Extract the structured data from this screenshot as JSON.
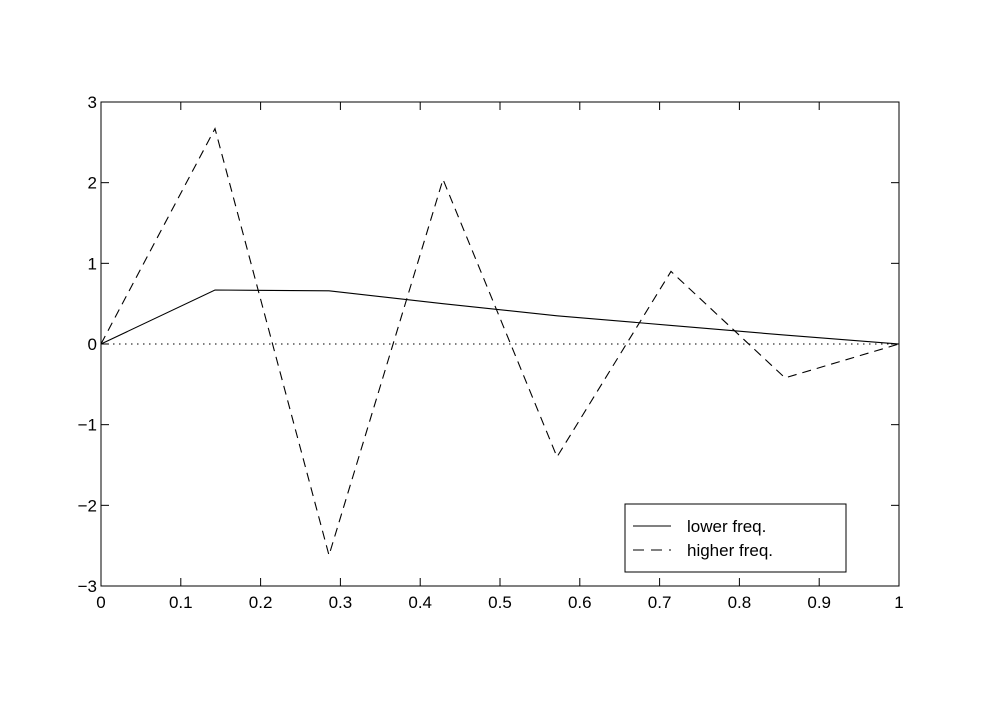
{
  "chart_data": {
    "type": "line",
    "title": "",
    "xlabel": "",
    "ylabel": "",
    "xlim": [
      0,
      1
    ],
    "ylim": [
      -3,
      3
    ],
    "x_ticks": [
      0,
      0.1,
      0.2,
      0.3,
      0.4,
      0.5,
      0.6,
      0.7,
      0.8,
      0.9,
      1
    ],
    "x_tick_labels": [
      "0",
      "0.1",
      "0.2",
      "0.3",
      "0.4",
      "0.5",
      "0.6",
      "0.7",
      "0.8",
      "0.9",
      "1"
    ],
    "y_ticks": [
      -3,
      -2,
      -1,
      0,
      1,
      2,
      3
    ],
    "y_tick_labels": [
      "−3",
      "−2",
      "−1",
      "0",
      "1",
      "2",
      "3"
    ],
    "grid": false,
    "legend_position": "lower-right",
    "baseline": {
      "y": 0,
      "style": "dotted"
    },
    "series": [
      {
        "name": "lower freq.",
        "style": "solid",
        "color": "#000000",
        "x": [
          0,
          0.1429,
          0.2857,
          0.4286,
          0.5714,
          0.7143,
          0.8571,
          1
        ],
        "y": [
          0,
          0.67,
          0.66,
          0.5,
          0.35,
          0.23,
          0.11,
          0
        ]
      },
      {
        "name": "higher freq.",
        "style": "dashed",
        "color": "#000000",
        "x": [
          0,
          0.1429,
          0.2857,
          0.4286,
          0.5714,
          0.7143,
          0.8571,
          1
        ],
        "y": [
          0,
          2.67,
          -2.62,
          2.04,
          -1.4,
          0.9,
          -0.42,
          0
        ]
      }
    ]
  }
}
